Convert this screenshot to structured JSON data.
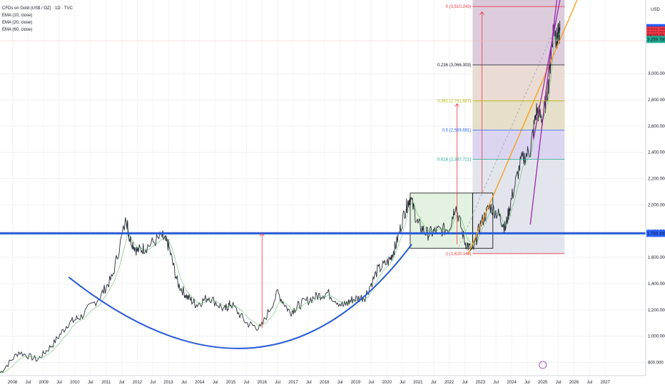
{
  "header": {
    "symbol": "CFDs on Gold (US$ / OZ) · 1D · TVC",
    "indicators": [
      "EMA (10, close)",
      "EMA (20, close)",
      "EMA (60, close)"
    ]
  },
  "axis": {
    "currency": "USD",
    "y_ticks": [
      800000,
      1000000,
      1200000,
      1400000,
      1600000,
      1800000,
      2000000,
      2200000,
      2400000,
      2600000,
      2800000,
      3000000
    ],
    "y_tick_labels": [
      "800.000",
      "1,000.000",
      "1,200.000",
      "1,400.000",
      "1,600.000",
      "1,800.000",
      "2,000.000",
      "2,200.000",
      "2,400.000",
      "2,600.000",
      "2,800.000",
      "3,000.000"
    ],
    "x_labels": [
      {
        "t": 2008.0,
        "l": "2008"
      },
      {
        "t": 2008.5,
        "l": "Jul"
      },
      {
        "t": 2009.0,
        "l": "2009"
      },
      {
        "t": 2009.5,
        "l": "Jul"
      },
      {
        "t": 2010.0,
        "l": "2010"
      },
      {
        "t": 2010.5,
        "l": "Jul"
      },
      {
        "t": 2011.0,
        "l": "2011"
      },
      {
        "t": 2011.5,
        "l": "Jul"
      },
      {
        "t": 2012.0,
        "l": "2012"
      },
      {
        "t": 2012.5,
        "l": "Jul"
      },
      {
        "t": 2013.0,
        "l": "2013"
      },
      {
        "t": 2013.5,
        "l": "Jul"
      },
      {
        "t": 2014.0,
        "l": "2014"
      },
      {
        "t": 2014.5,
        "l": "Jul"
      },
      {
        "t": 2015.0,
        "l": "2015"
      },
      {
        "t": 2015.5,
        "l": "Jul"
      },
      {
        "t": 2016.0,
        "l": "2016"
      },
      {
        "t": 2016.5,
        "l": "Jul"
      },
      {
        "t": 2017.0,
        "l": "2017"
      },
      {
        "t": 2017.5,
        "l": "Jul"
      },
      {
        "t": 2018.0,
        "l": "2018"
      },
      {
        "t": 2018.5,
        "l": "Jul"
      },
      {
        "t": 2019.0,
        "l": "2019"
      },
      {
        "t": 2019.5,
        "l": "Jul"
      },
      {
        "t": 2020.0,
        "l": "2020"
      },
      {
        "t": 2020.5,
        "l": "Jul"
      },
      {
        "t": 2021.0,
        "l": "2021"
      },
      {
        "t": 2021.5,
        "l": "Jul"
      },
      {
        "t": 2022.0,
        "l": "2022"
      },
      {
        "t": 2022.5,
        "l": "Jul"
      },
      {
        "t": 2023.0,
        "l": "2023"
      },
      {
        "t": 2023.5,
        "l": "Jul"
      },
      {
        "t": 2024.0,
        "l": "2024"
      },
      {
        "t": 2024.5,
        "l": "Jul"
      },
      {
        "t": 2025.0,
        "l": "2025"
      },
      {
        "t": 2025.5,
        "l": "Jul"
      },
      {
        "t": 2026.0,
        "l": "2026"
      },
      {
        "t": 2026.5,
        "l": "Jul"
      },
      {
        "t": 2027.0,
        "l": "2027"
      }
    ],
    "price_badges": [
      {
        "label": "3,349.516",
        "color": "#2962ff",
        "v": 3349516
      },
      {
        "label": "3,344.499",
        "color": "#f23645",
        "v": 3330000
      },
      {
        "label": "3,316.886",
        "color": "#f23645",
        "v": 3308000
      },
      {
        "label": "08:02:43",
        "color": "#f23645",
        "v": 3288000
      },
      {
        "label": "3,259.780",
        "color": "#22ab94",
        "v": 3259780
      },
      {
        "label": "1,783.160",
        "color": "#2962ff",
        "v": 1783160
      }
    ]
  },
  "fib_levels": [
    {
      "label": "0 (3,510.243)",
      "v": 3510243,
      "color": "#f23645"
    },
    {
      "label": "0.236 (3,066.303)",
      "v": 3066303,
      "color": "#131722"
    },
    {
      "label": "0.382 (2,791.667)",
      "v": 2791667,
      "color": "#b7b700"
    },
    {
      "label": "0.5 (2,569.691)",
      "v": 2569691,
      "color": "#2962ff"
    },
    {
      "label": "0.618 (2,347.721)",
      "v": 2347721,
      "color": "#22ab94"
    },
    {
      "label": "1 (1,629.140)",
      "v": 1629140,
      "color": "#f23645"
    }
  ],
  "chart_data": {
    "type": "line",
    "title": "CFDs on Gold (US$ / OZ) · 1D · TVC",
    "ylabel": "USD",
    "ylim": [
      700000,
      3560000
    ],
    "xlim": [
      2007.6,
      2028.3
    ],
    "series": [
      {
        "name": "",
        "x": [
          2007.6,
          2008.2,
          2008.8,
          2009.3,
          2009.8,
          2010.2,
          2010.8,
          2011.2,
          2011.65,
          2011.75,
          2012.0,
          2012.3,
          2012.8,
          2013.0,
          2013.3,
          2013.6,
          2013.9,
          2014.3,
          2014.8,
          2015.0,
          2015.5,
          2015.95,
          2016.5,
          2016.9,
          2017.2,
          2017.7,
          2018.1,
          2018.6,
          2018.9,
          2019.3,
          2019.7,
          2020.1,
          2020.3,
          2020.6,
          2020.75,
          2021.0,
          2021.3,
          2021.6,
          2022.0,
          2022.2,
          2022.5,
          2022.75,
          2023.0,
          2023.3,
          2023.6,
          2023.8,
          2024.0,
          2024.3,
          2024.6,
          2024.8,
          2025.0,
          2025.2,
          2025.35,
          2025.45,
          2025.55
        ],
        "values": [
          720000,
          880000,
          820000,
          940000,
          1100000,
          1150000,
          1300000,
          1450000,
          1900000,
          1750000,
          1650000,
          1680000,
          1760000,
          1690000,
          1400000,
          1300000,
          1240000,
          1300000,
          1200000,
          1250000,
          1100000,
          1060000,
          1330000,
          1180000,
          1240000,
          1300000,
          1330000,
          1230000,
          1280000,
          1300000,
          1500000,
          1580000,
          1700000,
          1970000,
          2060000,
          1850000,
          1780000,
          1800000,
          1820000,
          2000000,
          1720000,
          1640000,
          1850000,
          1990000,
          1920000,
          1820000,
          2050000,
          2330000,
          2420000,
          2720000,
          2650000,
          2950000,
          3380000,
          3250000,
          3330000
        ]
      }
    ],
    "horizontal_line": 1783160,
    "annotations": []
  }
}
